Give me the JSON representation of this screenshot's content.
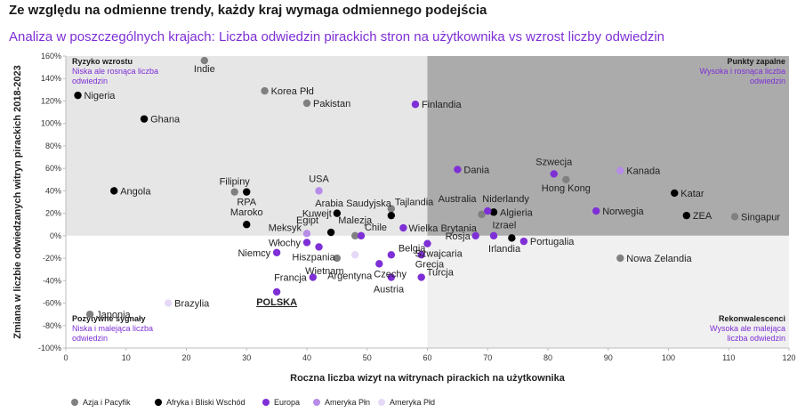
{
  "title": "Ze względu na odmienne trendy, każdy kraj wymaga odmiennego podejścia",
  "subtitle": "Analiza w poszczególnych krajach: Liczba odwiedzin pirackich stron na użytkownika vs wzrost liczby odwiedzin",
  "chart_data": {
    "type": "scatter",
    "xlabel": "Roczna liczba wizyt na witrynach pirackich na użytkownika",
    "ylabel": "Zmiana w liczbie odwiedzanych witryn pirackich 2018-2023",
    "xlim": [
      0,
      120
    ],
    "ylim": [
      -100,
      160
    ],
    "x_ticks": [
      0,
      10,
      20,
      30,
      40,
      50,
      60,
      70,
      80,
      90,
      100,
      110,
      120
    ],
    "y_ticks": [
      -100,
      -80,
      -60,
      -40,
      -20,
      0,
      20,
      40,
      60,
      80,
      100,
      120,
      140,
      160
    ],
    "y_tick_labels": [
      "-100%",
      "-80%",
      "-60%",
      "-40%",
      "-20%",
      "0%",
      "20%",
      "40%",
      "60%",
      "80%",
      "100%",
      "120%",
      "140%",
      "160%"
    ],
    "quadrant_split": {
      "x": 60,
      "y": 0
    },
    "quadrants": [
      {
        "position": "top-left",
        "title": "Ryzyko wzrostu",
        "desc": [
          "Niska ale rosnąca liczba",
          "odwiedzin"
        ]
      },
      {
        "position": "top-right",
        "title": "Punkty zapalne",
        "desc": [
          "Wysoka i rosnąca liczba",
          "odwiedzin"
        ]
      },
      {
        "position": "bottom-left",
        "title": "Pozytywne sygnały",
        "desc": [
          "Niska i malejąca liczba",
          "odwiedzin"
        ]
      },
      {
        "position": "bottom-right",
        "title": "Rekonwalescenci",
        "desc": [
          "Wysoka ale malejąca",
          "liczba odwiedzin"
        ]
      }
    ],
    "series": [
      {
        "name": "Azja i Pacyfik",
        "color": "#808080",
        "points": [
          {
            "label": "Indie",
            "x": 23,
            "y": 156
          },
          {
            "label": "Korea Płd",
            "x": 33,
            "y": 129
          },
          {
            "label": "Pakistan",
            "x": 40,
            "y": 118
          },
          {
            "label": "Filipiny",
            "x": 28,
            "y": 39
          },
          {
            "label": "Malezja",
            "x": 48,
            "y": 0
          },
          {
            "label": "Tajlandia",
            "x": 54,
            "y": 24
          },
          {
            "label": "Australia",
            "x": 69,
            "y": 19
          },
          {
            "label": "Hong Kong",
            "x": 83,
            "y": 50
          },
          {
            "label": "Singapur",
            "x": 111,
            "y": 17
          },
          {
            "label": "Nowa Zelandia",
            "x": 92,
            "y": -20
          },
          {
            "label": "Japonia",
            "x": 4,
            "y": -70
          },
          {
            "label": "Wietnam",
            "x": 45,
            "y": -20
          }
        ]
      },
      {
        "name": "Afryka i Bliski Wschód",
        "color": "#000000",
        "points": [
          {
            "label": "Nigeria",
            "x": 2,
            "y": 125
          },
          {
            "label": "Ghana",
            "x": 13,
            "y": 104
          },
          {
            "label": "Angola",
            "x": 8,
            "y": 40
          },
          {
            "label": "RPA",
            "x": 30,
            "y": 39
          },
          {
            "label": "Maroko",
            "x": 30,
            "y": 10
          },
          {
            "label": "Kuwejt",
            "x": 45,
            "y": 20
          },
          {
            "label": "Arabia Saudyjska",
            "x": 54,
            "y": 18
          },
          {
            "label": "Egipt",
            "x": 44,
            "y": 3
          },
          {
            "label": "Algieria",
            "x": 71,
            "y": 21
          },
          {
            "label": "Izrael",
            "x": 74,
            "y": -2
          },
          {
            "label": "Katar",
            "x": 101,
            "y": 38
          },
          {
            "label": "ZEA",
            "x": 103,
            "y": 18
          }
        ]
      },
      {
        "name": "Europa",
        "color": "#7e2fd6",
        "points": [
          {
            "label": "Finlandia",
            "x": 58,
            "y": 117
          },
          {
            "label": "Dania",
            "x": 65,
            "y": 59
          },
          {
            "label": "Szwecja",
            "x": 81,
            "y": 55
          },
          {
            "label": "Norwegia",
            "x": 88,
            "y": 22
          },
          {
            "label": "Niderlandy",
            "x": 70,
            "y": 22
          },
          {
            "label": "Wielka Brytania",
            "x": 56,
            "y": 7
          },
          {
            "label": "Rosja",
            "x": 68,
            "y": 0
          },
          {
            "label": "Irlandia",
            "x": 71,
            "y": 0
          },
          {
            "label": "Portugalia",
            "x": 76,
            "y": -5
          },
          {
            "label": "Belgia",
            "x": 54,
            "y": -17
          },
          {
            "label": "Szwajcaria",
            "x": 60,
            "y": -7
          },
          {
            "label": "Grecja",
            "x": 59,
            "y": -17
          },
          {
            "label": "Turcja",
            "x": 59,
            "y": -37
          },
          {
            "label": "Austria",
            "x": 54,
            "y": -37
          },
          {
            "label": "Czechy",
            "x": 52,
            "y": -25
          },
          {
            "label": "Włochy",
            "x": 40,
            "y": -6
          },
          {
            "label": "Niemcy",
            "x": 35,
            "y": -15
          },
          {
            "label": "Hiszpania",
            "x": 42,
            "y": -10
          },
          {
            "label": "Francja",
            "x": 41,
            "y": -37
          },
          {
            "label": "POLSKA",
            "x": 35,
            "y": -50
          },
          {
            "label": "Chile",
            "x": 49,
            "y": 0
          }
        ]
      },
      {
        "name": "Ameryka Płn",
        "color": "#b78ce8",
        "points": [
          {
            "label": "USA",
            "x": 42,
            "y": 40
          },
          {
            "label": "Kanada",
            "x": 92,
            "y": 58
          },
          {
            "label": "Meksyk",
            "x": 40,
            "y": 2
          }
        ]
      },
      {
        "name": "Ameryka Płd",
        "color": "#e6d9f7",
        "points": [
          {
            "label": "Brazylia",
            "x": 17,
            "y": -60
          },
          {
            "label": "Argentyna",
            "x": 48,
            "y": -17
          }
        ]
      }
    ]
  }
}
